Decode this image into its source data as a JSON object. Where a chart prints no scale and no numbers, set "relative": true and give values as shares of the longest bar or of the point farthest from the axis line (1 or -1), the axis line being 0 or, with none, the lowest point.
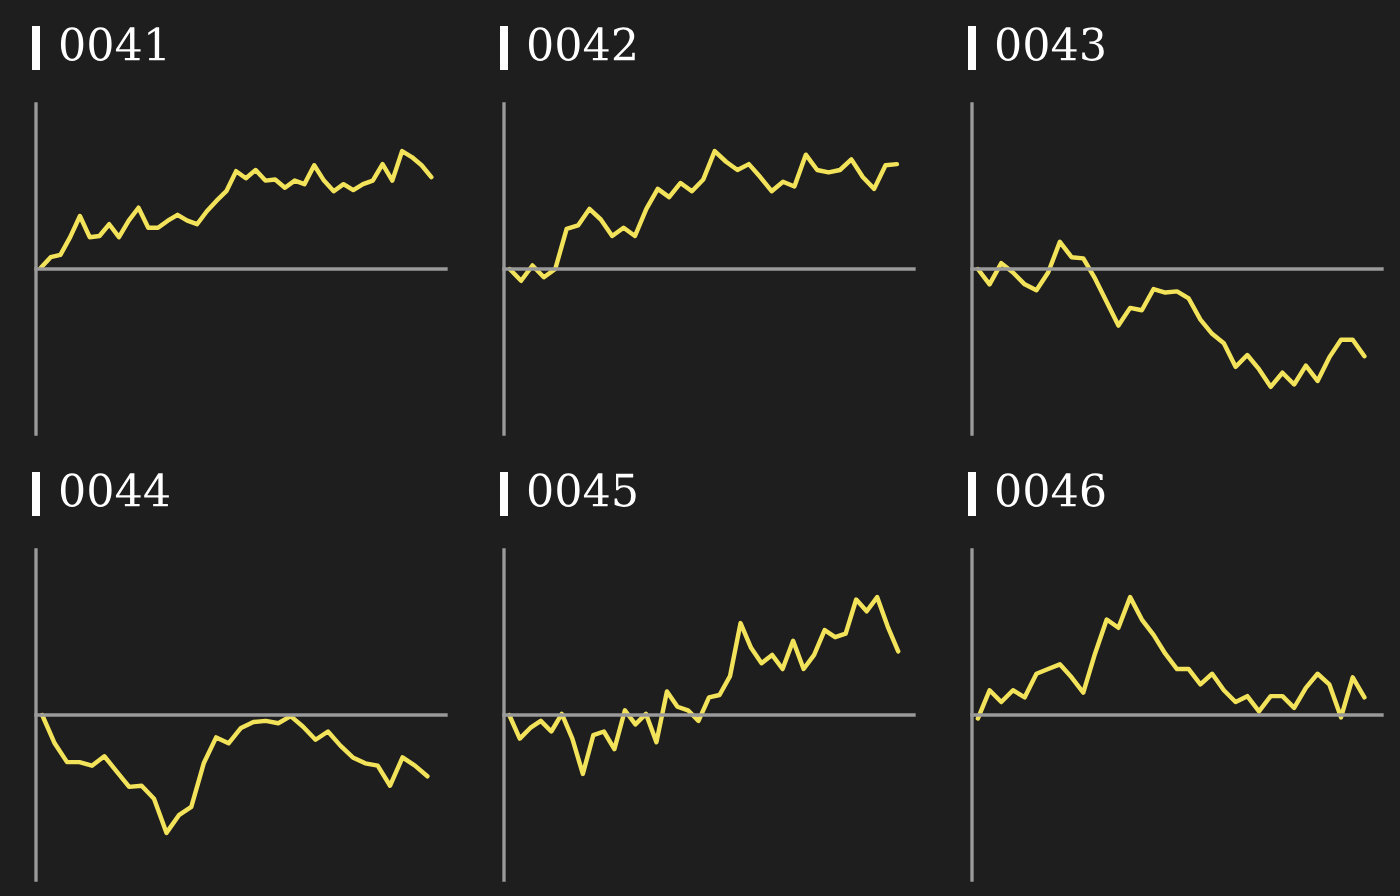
{
  "chart_data": [
    {
      "type": "line",
      "title": "0041",
      "relative": true,
      "categories": [
        null,
        null,
        null,
        null,
        null,
        null,
        null,
        null,
        null,
        null,
        null,
        null,
        null,
        null,
        null,
        null,
        null,
        null,
        null,
        null,
        null,
        null,
        null,
        null,
        null,
        null,
        null,
        null,
        null,
        null,
        null,
        null,
        null,
        null,
        null,
        null,
        null,
        null,
        null,
        null,
        null
      ],
      "series": [
        {
          "color": "#f2e35a",
          "values": [
            0.01,
            0.1,
            0.12,
            0.27,
            0.45,
            0.27,
            0.28,
            0.38,
            0.27,
            0.41,
            0.52,
            0.35,
            0.35,
            0.41,
            0.46,
            0.41,
            0.38,
            0.49,
            0.58,
            0.66,
            0.83,
            0.77,
            0.84,
            0.75,
            0.76,
            0.69,
            0.75,
            0.72,
            0.88,
            0.75,
            0.66,
            0.72,
            0.67,
            0.72,
            0.75,
            0.89,
            0.75,
            1.0,
            0.95,
            0.88,
            0.78
          ]
        }
      ]
    },
    {
      "type": "line",
      "title": "0042",
      "relative": true,
      "categories": [
        null,
        null,
        null,
        null,
        null,
        null,
        null,
        null,
        null,
        null,
        null,
        null,
        null,
        null,
        null,
        null,
        null,
        null,
        null,
        null,
        null,
        null,
        null,
        null,
        null,
        null,
        null,
        null,
        null,
        null,
        null,
        null,
        null,
        null,
        null
      ],
      "series": [
        {
          "color": "#f2e35a",
          "values": [
            0,
            -0.1,
            0.03,
            -0.07,
            0,
            0.34,
            0.37,
            0.51,
            0.42,
            0.28,
            0.35,
            0.28,
            0.51,
            0.68,
            0.61,
            0.73,
            0.66,
            0.76,
            1.0,
            0.91,
            0.84,
            0.89,
            0.78,
            0.66,
            0.74,
            0.7,
            0.97,
            0.84,
            0.82,
            0.84,
            0.93,
            0.78,
            0.68,
            0.88,
            0.89
          ]
        }
      ]
    },
    {
      "type": "line",
      "title": "0043",
      "relative": true,
      "categories": [
        null,
        null,
        null,
        null,
        null,
        null,
        null,
        null,
        null,
        null,
        null,
        null,
        null,
        null,
        null,
        null,
        null,
        null,
        null,
        null,
        null,
        null,
        null,
        null,
        null,
        null,
        null,
        null,
        null,
        null,
        null,
        null,
        null,
        null
      ],
      "series": [
        {
          "color": "#f2e35a",
          "values": [
            0,
            -0.13,
            0.05,
            -0.03,
            -0.13,
            -0.18,
            -0.03,
            0.23,
            0.1,
            0.09,
            -0.08,
            -0.28,
            -0.48,
            -0.33,
            -0.35,
            -0.17,
            -0.2,
            -0.19,
            -0.25,
            -0.43,
            -0.55,
            -0.63,
            -0.83,
            -0.73,
            -0.85,
            -1.0,
            -0.88,
            -0.98,
            -0.82,
            -0.95,
            -0.75,
            -0.6,
            -0.6,
            -0.74
          ]
        }
      ]
    },
    {
      "type": "line",
      "title": "0044",
      "relative": true,
      "categories": [
        null,
        null,
        null,
        null,
        null,
        null,
        null,
        null,
        null,
        null,
        null,
        null,
        null,
        null,
        null,
        null,
        null,
        null,
        null,
        null,
        null,
        null,
        null,
        null,
        null,
        null,
        null,
        null,
        null,
        null,
        null,
        null
      ],
      "series": [
        {
          "color": "#f2e35a",
          "values": [
            0,
            -0.24,
            -0.4,
            -0.4,
            -0.43,
            -0.35,
            -0.48,
            -0.61,
            -0.6,
            -0.71,
            -1.0,
            -0.85,
            -0.78,
            -0.41,
            -0.19,
            -0.24,
            -0.11,
            -0.06,
            -0.05,
            -0.07,
            -0.01,
            -0.1,
            -0.21,
            -0.14,
            -0.26,
            -0.36,
            -0.41,
            -0.43,
            -0.6,
            -0.36,
            -0.43,
            -0.52
          ]
        }
      ]
    },
    {
      "type": "line",
      "title": "0045",
      "relative": true,
      "categories": [
        null,
        null,
        null,
        null,
        null,
        null,
        null,
        null,
        null,
        null,
        null,
        null,
        null,
        null,
        null,
        null,
        null,
        null,
        null,
        null,
        null,
        null,
        null,
        null,
        null,
        null,
        null,
        null,
        null,
        null,
        null,
        null,
        null,
        null,
        null,
        null,
        null,
        null
      ],
      "series": [
        {
          "color": "#f2e35a",
          "values": [
            0,
            -0.2,
            -0.11,
            -0.05,
            -0.14,
            0.01,
            -0.2,
            -0.5,
            -0.17,
            -0.14,
            -0.29,
            0.04,
            -0.08,
            0.01,
            -0.23,
            0.2,
            0.07,
            0.04,
            -0.05,
            0.15,
            0.17,
            0.33,
            0.78,
            0.57,
            0.44,
            0.51,
            0.39,
            0.63,
            0.39,
            0.51,
            0.72,
            0.66,
            0.69,
            0.98,
            0.88,
            1.0,
            0.75,
            0.54
          ]
        }
      ]
    },
    {
      "type": "line",
      "title": "0046",
      "relative": true,
      "categories": [
        null,
        null,
        null,
        null,
        null,
        null,
        null,
        null,
        null,
        null,
        null,
        null,
        null,
        null,
        null,
        null,
        null,
        null,
        null,
        null,
        null,
        null,
        null,
        null,
        null,
        null,
        null,
        null,
        null,
        null,
        null,
        null,
        null,
        null
      ],
      "series": [
        {
          "color": "#f2e35a",
          "values": [
            -0.03,
            0.21,
            0.11,
            0.21,
            0.15,
            0.35,
            0.39,
            0.43,
            0.32,
            0.19,
            0.52,
            0.81,
            0.74,
            1.0,
            0.81,
            0.68,
            0.52,
            0.39,
            0.39,
            0.26,
            0.35,
            0.21,
            0.11,
            0.16,
            0.03,
            0.16,
            0.16,
            0.06,
            0.23,
            0.35,
            0.26,
            -0.02,
            0.32,
            0.15
          ]
        }
      ]
    }
  ]
}
